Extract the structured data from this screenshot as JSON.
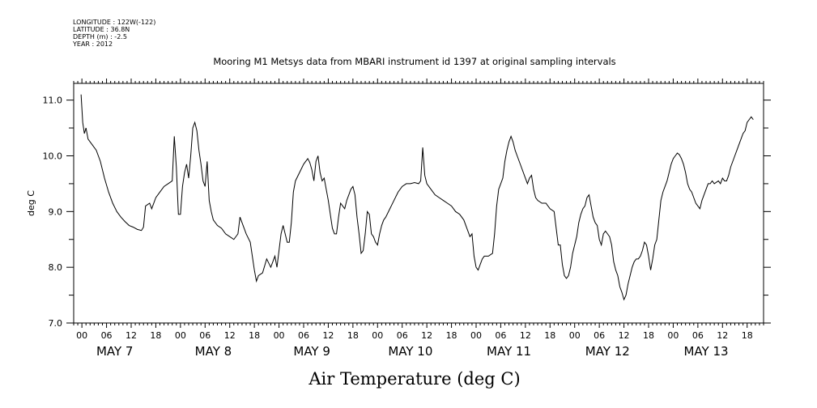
{
  "meta": {
    "longitude": "LONGITUDE : 122W(-122)",
    "latitude": "LATITUDE : 36.8N",
    "depth": "DEPTH (m) : -2.5",
    "year": "YEAR : 2012"
  },
  "chart_data": {
    "type": "line",
    "title": "Mooring M1 Metsys data from MBARI instrument id 1397 at original sampling intervals",
    "xlabel": "Air Temperature (deg C)",
    "ylabel": "deg C",
    "ylim": [
      7.0,
      11.3
    ],
    "yticks": [
      7.0,
      8.0,
      9.0,
      10.0,
      11.0
    ],
    "ytick_labels": [
      "7.0",
      "8.0",
      "9.0",
      "10.0",
      "11.0"
    ],
    "xlim_hours": [
      -2,
      166
    ],
    "hour_tick_labels": [
      "00",
      "06",
      "12",
      "18",
      "00",
      "06",
      "12",
      "18",
      "00",
      "06",
      "12",
      "18",
      "00",
      "06",
      "12",
      "18",
      "00",
      "06",
      "12",
      "18",
      "00",
      "06",
      "12",
      "18",
      "00",
      "06",
      "12",
      "18"
    ],
    "day_labels": [
      "MAY 7",
      "MAY 8",
      "MAY 9",
      "MAY 10",
      "MAY 11",
      "MAY 12",
      "MAY 13"
    ],
    "grid": false,
    "series": [
      {
        "name": "",
        "points": [
          [
            -0.2,
            11.1
          ],
          [
            0.2,
            10.6
          ],
          [
            0.6,
            10.4
          ],
          [
            1,
            10.5
          ],
          [
            1.5,
            10.3
          ],
          [
            2.5,
            10.2
          ],
          [
            3.5,
            10.1
          ],
          [
            4.5,
            9.9
          ],
          [
            5.5,
            9.6
          ],
          [
            6.5,
            9.35
          ],
          [
            7.5,
            9.15
          ],
          [
            8.5,
            9.0
          ],
          [
            9.5,
            8.9
          ],
          [
            10.5,
            8.82
          ],
          [
            11.5,
            8.75
          ],
          [
            12.5,
            8.72
          ],
          [
            13.5,
            8.68
          ],
          [
            14.5,
            8.66
          ],
          [
            15,
            8.72
          ],
          [
            15.5,
            9.1
          ],
          [
            16.5,
            9.15
          ],
          [
            17,
            9.05
          ],
          [
            18,
            9.25
          ],
          [
            19,
            9.35
          ],
          [
            20,
            9.45
          ],
          [
            21,
            9.5
          ],
          [
            22,
            9.55
          ],
          [
            22.5,
            10.35
          ],
          [
            23,
            9.8
          ],
          [
            23.5,
            8.95
          ],
          [
            24,
            8.95
          ],
          [
            24.5,
            9.45
          ],
          [
            25,
            9.7
          ],
          [
            25.5,
            9.85
          ],
          [
            26,
            9.6
          ],
          [
            26.5,
            10.0
          ],
          [
            27,
            10.5
          ],
          [
            27.5,
            10.6
          ],
          [
            28,
            10.45
          ],
          [
            28.5,
            10.1
          ],
          [
            29,
            9.85
          ],
          [
            29.5,
            9.55
          ],
          [
            30,
            9.45
          ],
          [
            30.5,
            9.9
          ],
          [
            31,
            9.2
          ],
          [
            31.5,
            9.0
          ],
          [
            32,
            8.85
          ],
          [
            33,
            8.75
          ],
          [
            34,
            8.7
          ],
          [
            35,
            8.6
          ],
          [
            36,
            8.55
          ],
          [
            37,
            8.5
          ],
          [
            38,
            8.6
          ],
          [
            38.5,
            8.9
          ],
          [
            39,
            8.8
          ],
          [
            40,
            8.6
          ],
          [
            41,
            8.45
          ],
          [
            41.5,
            8.2
          ],
          [
            42,
            7.95
          ],
          [
            42.5,
            7.75
          ],
          [
            43,
            7.85
          ],
          [
            44,
            7.9
          ],
          [
            45,
            8.15
          ],
          [
            46,
            8.0
          ],
          [
            47,
            8.2
          ],
          [
            47.5,
            8.0
          ],
          [
            48,
            8.3
          ],
          [
            48.5,
            8.6
          ],
          [
            49,
            8.75
          ],
          [
            49.5,
            8.6
          ],
          [
            50,
            8.45
          ],
          [
            50.5,
            8.45
          ],
          [
            51,
            8.8
          ],
          [
            51.5,
            9.35
          ],
          [
            52,
            9.55
          ],
          [
            53,
            9.7
          ],
          [
            54,
            9.85
          ],
          [
            55,
            9.95
          ],
          [
            55.5,
            9.88
          ],
          [
            56,
            9.75
          ],
          [
            56.5,
            9.55
          ],
          [
            57,
            9.9
          ],
          [
            57.5,
            10.0
          ],
          [
            58,
            9.7
          ],
          [
            58.5,
            9.55
          ],
          [
            59,
            9.6
          ],
          [
            59.5,
            9.4
          ],
          [
            60,
            9.2
          ],
          [
            60.5,
            8.95
          ],
          [
            61,
            8.7
          ],
          [
            61.5,
            8.6
          ],
          [
            62,
            8.6
          ],
          [
            62.5,
            8.9
          ],
          [
            63,
            9.15
          ],
          [
            63.5,
            9.1
          ],
          [
            64,
            9.05
          ],
          [
            64.5,
            9.2
          ],
          [
            65,
            9.3
          ],
          [
            65.5,
            9.4
          ],
          [
            66,
            9.45
          ],
          [
            66.5,
            9.3
          ],
          [
            67,
            8.9
          ],
          [
            67.5,
            8.6
          ],
          [
            68,
            8.25
          ],
          [
            68.5,
            8.3
          ],
          [
            69,
            8.6
          ],
          [
            69.5,
            9.0
          ],
          [
            70,
            8.95
          ],
          [
            70.5,
            8.6
          ],
          [
            71,
            8.55
          ],
          [
            71.5,
            8.45
          ],
          [
            72,
            8.4
          ],
          [
            72.5,
            8.6
          ],
          [
            73,
            8.75
          ],
          [
            73.5,
            8.85
          ],
          [
            74,
            8.9
          ],
          [
            75,
            9.05
          ],
          [
            76,
            9.2
          ],
          [
            77,
            9.35
          ],
          [
            78,
            9.45
          ],
          [
            79,
            9.5
          ],
          [
            80,
            9.5
          ],
          [
            81,
            9.52
          ],
          [
            82,
            9.5
          ],
          [
            82.5,
            9.55
          ],
          [
            83,
            10.15
          ],
          [
            83.5,
            9.65
          ],
          [
            84,
            9.5
          ],
          [
            85,
            9.4
          ],
          [
            86,
            9.3
          ],
          [
            87,
            9.25
          ],
          [
            88,
            9.2
          ],
          [
            89,
            9.15
          ],
          [
            90,
            9.1
          ],
          [
            91,
            9.0
          ],
          [
            92,
            8.95
          ],
          [
            93,
            8.85
          ],
          [
            94,
            8.65
          ],
          [
            94.5,
            8.55
          ],
          [
            95,
            8.6
          ],
          [
            95.5,
            8.2
          ],
          [
            96,
            8.0
          ],
          [
            96.5,
            7.95
          ],
          [
            97,
            8.05
          ],
          [
            97.5,
            8.15
          ],
          [
            98,
            8.2
          ],
          [
            99,
            8.2
          ],
          [
            100,
            8.25
          ],
          [
            100.5,
            8.6
          ],
          [
            101,
            9.1
          ],
          [
            101.5,
            9.4
          ],
          [
            102,
            9.5
          ],
          [
            102.5,
            9.6
          ],
          [
            103,
            9.9
          ],
          [
            103.5,
            10.1
          ],
          [
            104,
            10.25
          ],
          [
            104.5,
            10.35
          ],
          [
            105,
            10.25
          ],
          [
            105.5,
            10.1
          ],
          [
            106,
            10.0
          ],
          [
            107,
            9.8
          ],
          [
            108,
            9.6
          ],
          [
            108.5,
            9.5
          ],
          [
            109,
            9.6
          ],
          [
            109.5,
            9.65
          ],
          [
            110,
            9.4
          ],
          [
            110.5,
            9.25
          ],
          [
            111,
            9.2
          ],
          [
            112,
            9.15
          ],
          [
            113,
            9.15
          ],
          [
            114,
            9.05
          ],
          [
            115,
            9.0
          ],
          [
            115.5,
            8.7
          ],
          [
            116,
            8.4
          ],
          [
            116.5,
            8.4
          ],
          [
            117,
            8.05
          ],
          [
            117.5,
            7.85
          ],
          [
            118,
            7.8
          ],
          [
            118.5,
            7.85
          ],
          [
            119,
            8.0
          ],
          [
            119.5,
            8.25
          ],
          [
            120,
            8.4
          ],
          [
            120.5,
            8.55
          ],
          [
            121,
            8.8
          ],
          [
            121.5,
            8.95
          ],
          [
            122,
            9.05
          ],
          [
            122.5,
            9.1
          ],
          [
            123,
            9.25
          ],
          [
            123.5,
            9.3
          ],
          [
            124,
            9.1
          ],
          [
            124.5,
            8.9
          ],
          [
            125,
            8.8
          ],
          [
            125.5,
            8.75
          ],
          [
            126,
            8.5
          ],
          [
            126.5,
            8.4
          ],
          [
            127,
            8.6
          ],
          [
            127.5,
            8.65
          ],
          [
            128,
            8.6
          ],
          [
            128.5,
            8.55
          ],
          [
            129,
            8.4
          ],
          [
            129.5,
            8.1
          ],
          [
            130,
            7.95
          ],
          [
            130.5,
            7.85
          ],
          [
            131,
            7.65
          ],
          [
            131.5,
            7.55
          ],
          [
            132,
            7.42
          ],
          [
            132.5,
            7.5
          ],
          [
            133,
            7.7
          ],
          [
            133.5,
            7.85
          ],
          [
            134,
            8.0
          ],
          [
            134.5,
            8.1
          ],
          [
            135,
            8.15
          ],
          [
            135.5,
            8.15
          ],
          [
            136,
            8.2
          ],
          [
            136.5,
            8.3
          ],
          [
            137,
            8.45
          ],
          [
            137.5,
            8.4
          ],
          [
            138,
            8.2
          ],
          [
            138.5,
            7.95
          ],
          [
            139,
            8.15
          ],
          [
            139.5,
            8.4
          ],
          [
            140,
            8.5
          ],
          [
            140.5,
            8.85
          ],
          [
            141,
            9.2
          ],
          [
            141.5,
            9.35
          ],
          [
            142,
            9.45
          ],
          [
            142.5,
            9.55
          ],
          [
            143,
            9.7
          ],
          [
            143.5,
            9.85
          ],
          [
            144,
            9.95
          ],
          [
            144.5,
            10.0
          ],
          [
            145,
            10.05
          ],
          [
            145.5,
            10.02
          ],
          [
            146,
            9.95
          ],
          [
            146.5,
            9.85
          ],
          [
            147,
            9.7
          ],
          [
            147.5,
            9.5
          ],
          [
            148,
            9.4
          ],
          [
            148.5,
            9.35
          ],
          [
            149,
            9.25
          ],
          [
            149.5,
            9.15
          ],
          [
            150,
            9.1
          ],
          [
            150.5,
            9.05
          ],
          [
            151,
            9.2
          ],
          [
            151.5,
            9.3
          ],
          [
            152,
            9.4
          ],
          [
            152.5,
            9.5
          ],
          [
            153,
            9.5
          ],
          [
            153.5,
            9.55
          ],
          [
            154,
            9.5
          ],
          [
            155,
            9.55
          ],
          [
            155.5,
            9.5
          ],
          [
            156,
            9.6
          ],
          [
            156.5,
            9.55
          ],
          [
            157,
            9.55
          ],
          [
            157.5,
            9.65
          ],
          [
            158,
            9.8
          ],
          [
            158.5,
            9.9
          ],
          [
            159,
            10.0
          ],
          [
            159.5,
            10.1
          ],
          [
            160,
            10.2
          ],
          [
            160.5,
            10.3
          ],
          [
            161,
            10.4
          ],
          [
            161.5,
            10.45
          ],
          [
            162,
            10.6
          ],
          [
            162.5,
            10.65
          ],
          [
            163,
            10.7
          ],
          [
            163.5,
            10.65
          ]
        ]
      }
    ]
  }
}
